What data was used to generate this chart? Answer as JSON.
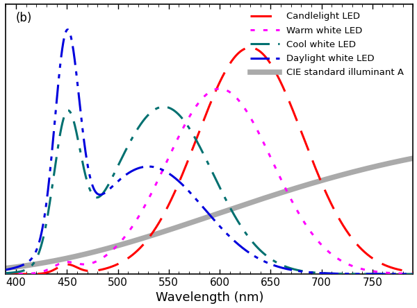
{
  "title": "(b)",
  "xlabel": "Wavelength (nm)",
  "xlim": [
    390,
    790
  ],
  "ylim": [
    0,
    1.05
  ],
  "background_color": "#ffffff",
  "candlelight_color": "#ff0000",
  "warm_color": "#ff00ff",
  "cool_color": "#007070",
  "daylight_color": "#0000dd",
  "cie_color": "#aaaaaa",
  "xticks": [
    400,
    450,
    500,
    550,
    600,
    650,
    700,
    750
  ]
}
